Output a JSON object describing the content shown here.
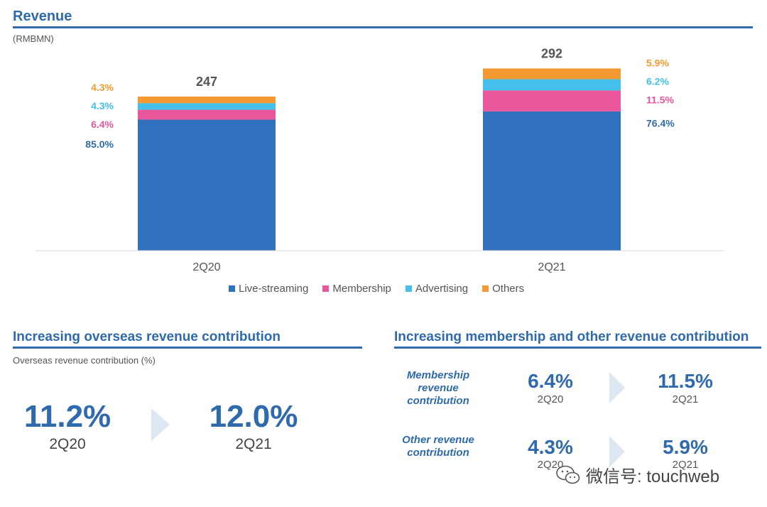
{
  "header": {
    "title": "Revenue",
    "unit": "(RMBMN)"
  },
  "chart_data": {
    "type": "bar",
    "stacked": true,
    "title": "Revenue",
    "ylabel": "(RMBMN)",
    "categories": [
      "2Q20",
      "2Q21"
    ],
    "totals": [
      247,
      292
    ],
    "series": [
      {
        "name": "Live-streaming",
        "color": "#3070bc",
        "pct": [
          "85.0%",
          "76.4%"
        ],
        "values": [
          210.0,
          223.1
        ]
      },
      {
        "name": "Membership",
        "color": "#e9579a",
        "pct": [
          "6.4%",
          "11.5%"
        ],
        "values": [
          15.8,
          33.6
        ]
      },
      {
        "name": "Advertising",
        "color": "#45c0ea",
        "pct": [
          "4.3%",
          "6.2%"
        ],
        "values": [
          10.6,
          18.1
        ]
      },
      {
        "name": "Others",
        "color": "#f39a33",
        "pct": [
          "4.3%",
          "5.9%"
        ],
        "values": [
          10.6,
          17.2
        ]
      }
    ],
    "ylim": [
      0,
      330
    ]
  },
  "legend": [
    "Live-streaming",
    "Membership",
    "Advertising",
    "Others"
  ],
  "overseas": {
    "title": "Increasing overseas revenue contribution",
    "subtitle": "Overseas revenue contribution (%)",
    "from_value": "11.2%",
    "from_period": "2Q20",
    "to_value": "12.0%",
    "to_period": "2Q21"
  },
  "membership_other": {
    "title": "Increasing membership and other revenue contribution",
    "rows": [
      {
        "label": "Membership revenue contribution",
        "from_value": "6.4%",
        "from_period": "2Q20",
        "to_value": "11.5%",
        "to_period": "2Q21"
      },
      {
        "label": "Other revenue contribution",
        "from_value": "4.3%",
        "from_period": "2Q20",
        "to_value": "5.9%",
        "to_period": "2Q21"
      }
    ]
  },
  "watermark": {
    "text": "微信号: touchweb"
  },
  "colors": {
    "accent": "#2e6aac",
    "arrow": "#dde6f3"
  }
}
